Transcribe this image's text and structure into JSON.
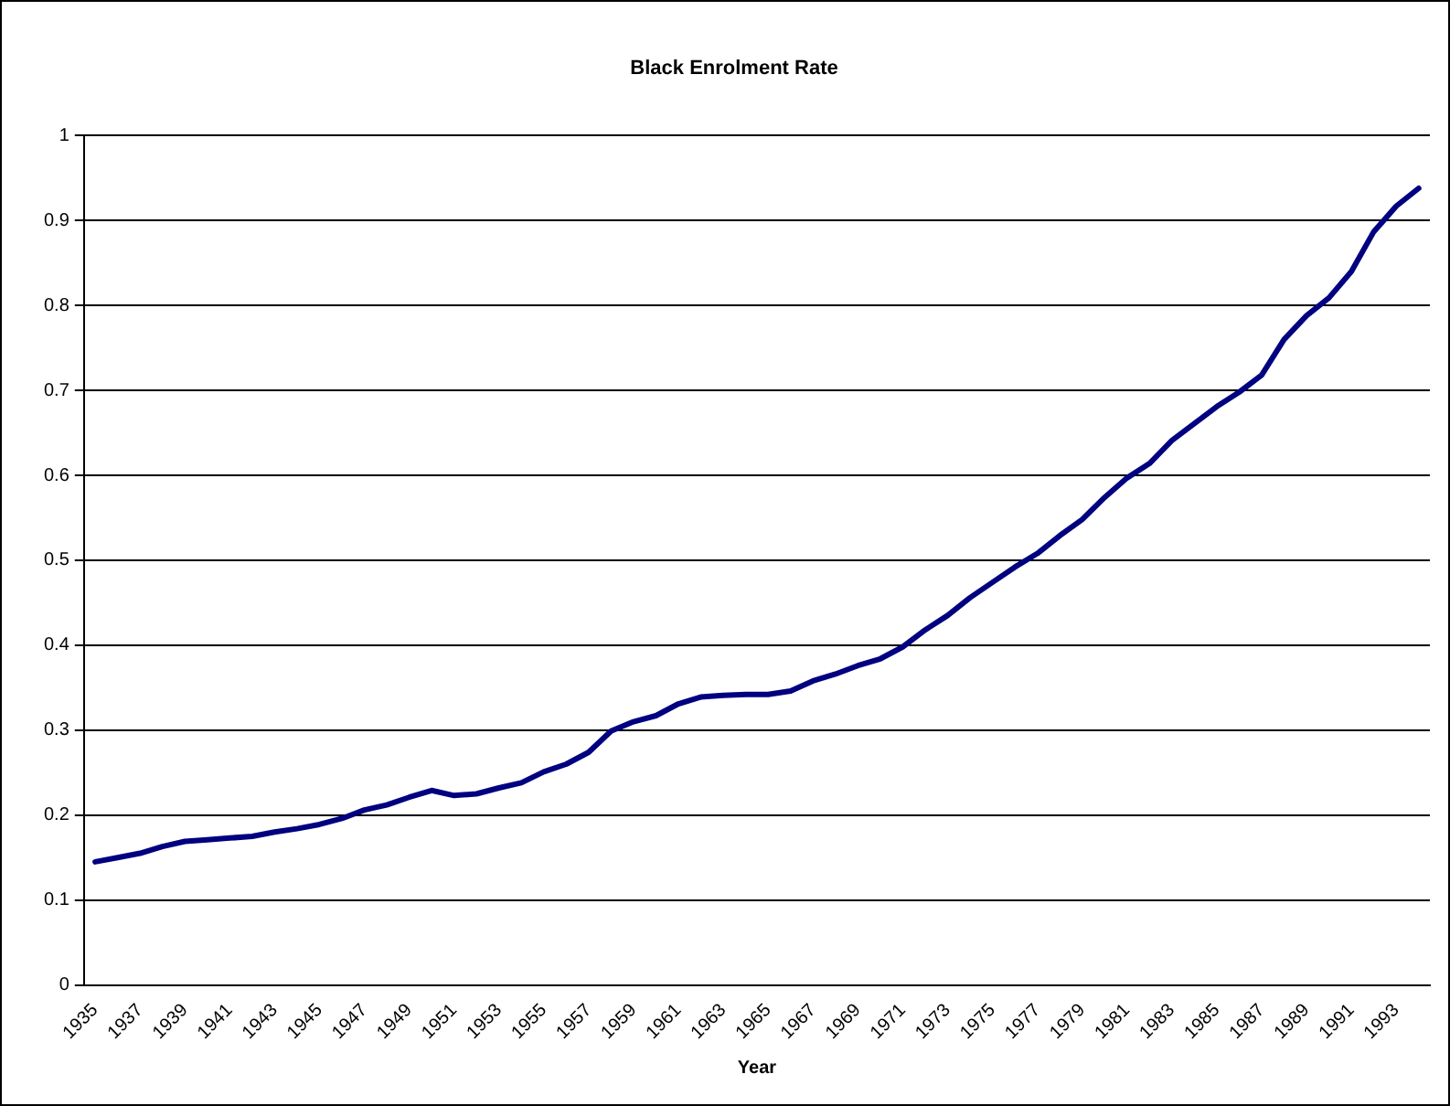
{
  "chart_data": {
    "type": "line",
    "title": "Black Enrolment Rate",
    "xlabel": "Year",
    "categories": [
      "1935",
      null,
      "1937",
      null,
      "1939",
      null,
      "1941",
      null,
      "1943",
      null,
      "1945",
      null,
      "1947",
      null,
      "1949",
      null,
      "1951",
      null,
      "1953",
      null,
      "1955",
      null,
      "1957",
      null,
      "1959",
      null,
      "1961",
      null,
      "1963",
      null,
      "1965",
      null,
      "1967",
      null,
      "1969",
      null,
      "1971",
      null,
      "1973",
      null,
      "1975",
      null,
      "1977",
      null,
      "1979",
      null,
      "1981",
      null,
      "1983",
      null,
      "1985",
      null,
      "1987",
      null,
      "1989",
      null,
      "1991",
      null,
      "1993",
      null
    ],
    "series": [
      {
        "color": "#000080",
        "values": [
          0.145,
          0.15,
          0.155,
          0.163,
          0.169,
          0.171,
          0.173,
          0.175,
          0.18,
          0.184,
          0.189,
          0.196,
          0.206,
          0.212,
          0.221,
          0.229,
          0.223,
          0.225,
          0.232,
          0.238,
          0.251,
          0.26,
          0.274,
          0.299,
          0.31,
          0.317,
          0.331,
          0.339,
          0.341,
          0.342,
          0.342,
          0.346,
          0.358,
          0.366,
          0.376,
          0.384,
          0.398,
          0.418,
          0.435,
          0.456,
          0.474,
          0.492,
          0.508,
          0.529,
          0.548,
          0.574,
          0.597,
          0.614,
          0.641,
          0.661,
          0.681,
          0.698,
          0.718,
          0.76,
          0.788,
          0.809,
          0.84,
          0.887,
          0.917,
          0.938
        ]
      }
    ],
    "ylim": [
      0,
      1
    ],
    "yticks": [
      0,
      0.1,
      0.2,
      0.3,
      0.4,
      0.5,
      0.6,
      0.7,
      0.8,
      0.9,
      1
    ],
    "grid": "y",
    "legend": false,
    "marker": "none",
    "line_style": "solid"
  }
}
